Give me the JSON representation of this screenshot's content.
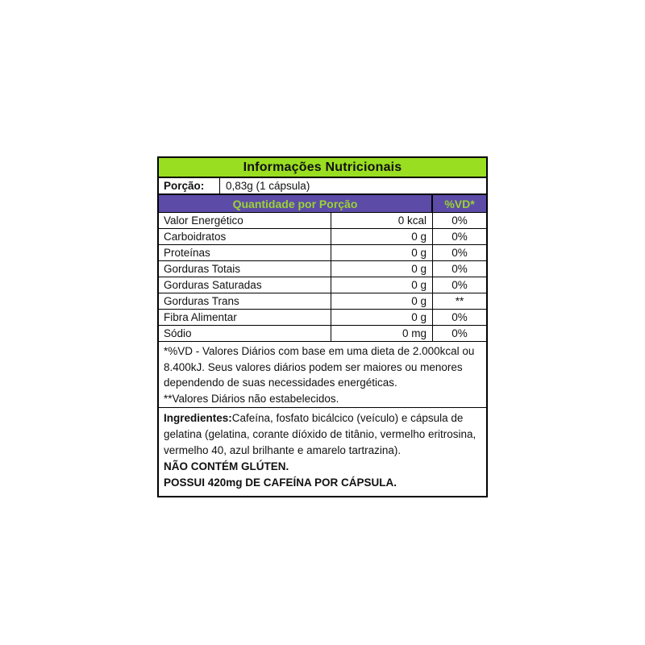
{
  "label": {
    "title": "Informações Nutricionais",
    "serving": {
      "label": "Porção:",
      "value": "0,83g (1 cápsula)"
    },
    "header": {
      "quantity": "Quantidade por Porção",
      "dv": "%VD*"
    },
    "rows": [
      {
        "name": "Valor Energético",
        "amount": "0 kcal",
        "dv": "0%"
      },
      {
        "name": "Carboidratos",
        "amount": "0 g",
        "dv": "0%"
      },
      {
        "name": "Proteínas",
        "amount": "0 g",
        "dv": "0%"
      },
      {
        "name": "Gorduras Totais",
        "amount": "0 g",
        "dv": "0%"
      },
      {
        "name": "Gorduras Saturadas",
        "amount": "0 g",
        "dv": "0%"
      },
      {
        "name": "Gorduras Trans",
        "amount": "0 g",
        "dv": "**"
      },
      {
        "name": "Fibra Alimentar",
        "amount": "0 g",
        "dv": "0%"
      },
      {
        "name": "Sódio",
        "amount": "0 mg",
        "dv": "0%"
      }
    ],
    "footnotes": {
      "dv_note": "*%VD - Valores Diários com base em uma dieta de 2.000kcal ou 8.400kJ. Seus valores diários podem ser maiores ou menores dependendo de suas necessidades energéticas.",
      "not_established_note": "**Valores Diários não estabelecidos."
    },
    "ingredients": {
      "label": "Ingredientes:",
      "text": "Cafeína, fosfato bicálcico (veículo) e cápsula de gelatina (gelatina, corante díóxido de titânio, vermelho eritrosina, vermelho 40, azul brilhante e amarelo tartrazina).",
      "gluten_note": "NÃO CONTÉM GLÚTEN.",
      "caffeine_note": "POSSUI 420mg DE CAFEÍNA POR CÁPSULA."
    },
    "colors": {
      "title_bg": "#9ade21",
      "header_bg": "#5c4ca8",
      "header_text": "#9bd332",
      "border": "#000000"
    }
  }
}
